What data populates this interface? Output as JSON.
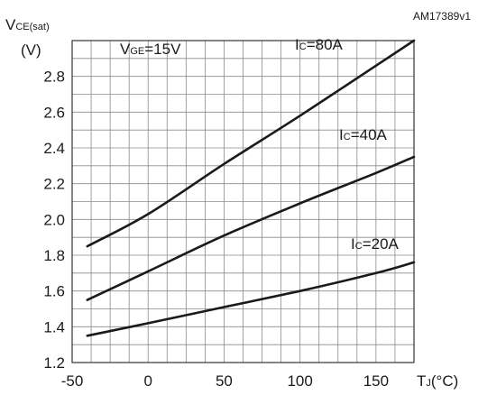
{
  "watermark": "AM17389v1",
  "chart_data": {
    "type": "line",
    "ylabel": {
      "main": "V",
      "sub": "CE(sat)",
      "unit": "(V)"
    },
    "xlabel": {
      "main": "T",
      "sub": "J",
      "unit": "(°C)"
    },
    "xlim": [
      -50,
      175
    ],
    "ylim": [
      1.2,
      3.0
    ],
    "x_ticks": [
      "-50",
      "0",
      "50",
      "100",
      "150"
    ],
    "y_ticks": [
      "1.2",
      "1.4",
      "1.6",
      "1.8",
      "2.0",
      "2.2",
      "2.4",
      "2.6",
      "2.8"
    ],
    "x_tick_values": [
      -50,
      0,
      50,
      100,
      150
    ],
    "y_tick_values": [
      1.2,
      1.4,
      1.6,
      1.8,
      2.0,
      2.2,
      2.4,
      2.6,
      2.8
    ],
    "grid": true,
    "condition": {
      "main": "V",
      "sub": "GE",
      "rest": "=15V"
    },
    "series": [
      {
        "name": {
          "main": "I",
          "sub": "C",
          "rest": "=80A"
        },
        "x": [
          -40,
          0,
          50,
          100,
          150,
          175
        ],
        "y": [
          1.85,
          2.03,
          2.31,
          2.58,
          2.86,
          3.0
        ]
      },
      {
        "name": {
          "main": "I",
          "sub": "C",
          "rest": "=40A"
        },
        "x": [
          -40,
          0,
          50,
          100,
          150,
          175
        ],
        "y": [
          1.55,
          1.71,
          1.91,
          2.09,
          2.26,
          2.35
        ]
      },
      {
        "name": {
          "main": "I",
          "sub": "C",
          "rest": "=20A"
        },
        "x": [
          -40,
          0,
          50,
          100,
          150,
          175
        ],
        "y": [
          1.35,
          1.42,
          1.51,
          1.6,
          1.7,
          1.76
        ]
      }
    ]
  }
}
